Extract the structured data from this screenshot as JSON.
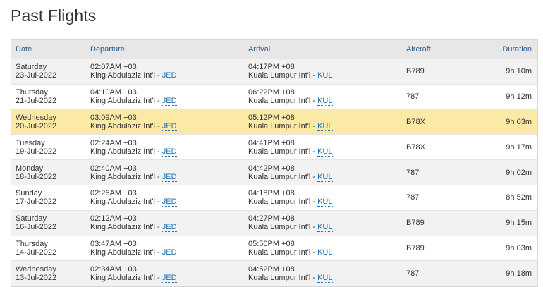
{
  "page": {
    "title": "Past Flights"
  },
  "table": {
    "headers": {
      "date": "Date",
      "departure": "Departure",
      "arrival": "Arrival",
      "aircraft": "Aircraft",
      "duration": "Duration"
    },
    "rows": [
      {
        "day": "Saturday",
        "date": "23-Jul-2022",
        "dep_time": "02:07AM +03",
        "dep_airport": "King Abdulaziz Int'l - ",
        "dep_code": "JED",
        "arr_time": "04:17PM +08",
        "arr_airport": "Kuala Lumpur Int'l - ",
        "arr_code": "KUL",
        "aircraft": "B789",
        "duration": "9h 10m",
        "highlighted": false
      },
      {
        "day": "Thursday",
        "date": "21-Jul-2022",
        "dep_time": "04:10AM +03",
        "dep_airport": "King Abdulaziz Int'l - ",
        "dep_code": "JED",
        "arr_time": "06:22PM +08",
        "arr_airport": "Kuala Lumpur Int'l - ",
        "arr_code": "KUL",
        "aircraft": "787",
        "duration": "9h 12m",
        "highlighted": false
      },
      {
        "day": "Wednesday",
        "date": "20-Jul-2022",
        "dep_time": "03:09AM +03",
        "dep_airport": "King Abdulaziz Int'l - ",
        "dep_code": "JED",
        "arr_time": "05:12PM +08",
        "arr_airport": "Kuala Lumpur Int'l - ",
        "arr_code": "KUL",
        "aircraft": "B78X",
        "duration": "9h 03m",
        "highlighted": true
      },
      {
        "day": "Tuesday",
        "date": "19-Jul-2022",
        "dep_time": "02:24AM +03",
        "dep_airport": "King Abdulaziz Int'l - ",
        "dep_code": "JED",
        "arr_time": "04:41PM +08",
        "arr_airport": "Kuala Lumpur Int'l - ",
        "arr_code": "KUL",
        "aircraft": "B78X",
        "duration": "9h 17m",
        "highlighted": false
      },
      {
        "day": "Monday",
        "date": "18-Jul-2022",
        "dep_time": "02:40AM +03",
        "dep_airport": "King Abdulaziz Int'l - ",
        "dep_code": "JED",
        "arr_time": "04:42PM +08",
        "arr_airport": "Kuala Lumpur Int'l - ",
        "arr_code": "KUL",
        "aircraft": "787",
        "duration": "9h 02m",
        "highlighted": false
      },
      {
        "day": "Sunday",
        "date": "17-Jul-2022",
        "dep_time": "02:26AM +03",
        "dep_airport": "King Abdulaziz Int'l - ",
        "dep_code": "JED",
        "arr_time": "04:18PM +08",
        "arr_airport": "Kuala Lumpur Int'l - ",
        "arr_code": "KUL",
        "aircraft": "787",
        "duration": "8h 52m",
        "highlighted": false
      },
      {
        "day": "Saturday",
        "date": "16-Jul-2022",
        "dep_time": "02:12AM +03",
        "dep_airport": "King Abdulaziz Int'l - ",
        "dep_code": "JED",
        "arr_time": "04:27PM +08",
        "arr_airport": "Kuala Lumpur Int'l - ",
        "arr_code": "KUL",
        "aircraft": "B789",
        "duration": "9h 15m",
        "highlighted": false
      },
      {
        "day": "Thursday",
        "date": "14-Jul-2022",
        "dep_time": "03:47AM +03",
        "dep_airport": "King Abdulaziz Int'l - ",
        "dep_code": "JED",
        "arr_time": "05:50PM +08",
        "arr_airport": "Kuala Lumpur Int'l - ",
        "arr_code": "KUL",
        "aircraft": "B789",
        "duration": "9h 03m",
        "highlighted": false
      },
      {
        "day": "Wednesday",
        "date": "13-Jul-2022",
        "dep_time": "02:34AM +03",
        "dep_airport": "King Abdulaziz Int'l - ",
        "dep_code": "JED",
        "arr_time": "04:52PM +08",
        "arr_airport": "Kuala Lumpur Int'l - ",
        "arr_code": "KUL",
        "aircraft": "787",
        "duration": "9h 18m",
        "highlighted": false
      }
    ]
  },
  "colors": {
    "header_bg": "#e7e7e7",
    "header_text": "#2a5a8a",
    "row_alt_bg": "#f2f2f2",
    "highlight_bg": "#fbe9a6",
    "link": "#1d72b8"
  }
}
